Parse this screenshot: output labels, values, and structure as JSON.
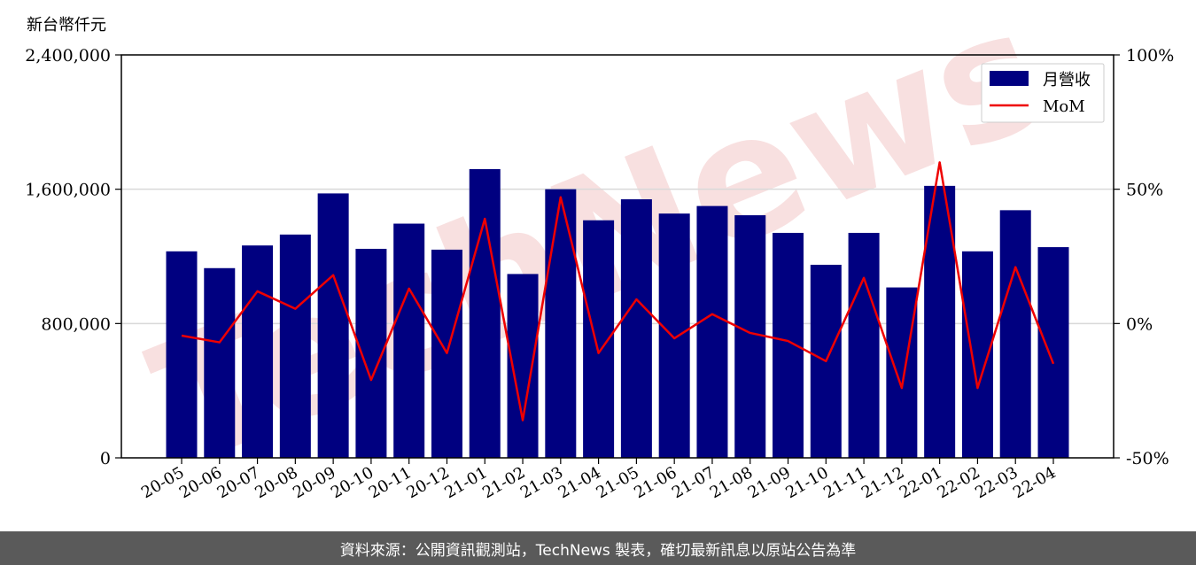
{
  "unit_label": "新台幣仟元",
  "footer_text": "資料來源：公開資訊觀測站，TechNews 製表，確切最新訊息以原站公告為準",
  "watermark_text": "TechNews",
  "colors": {
    "bar": "#000080",
    "line": "#ee0000",
    "grid": "#d9d9d9",
    "watermark": "#f2c7c7"
  },
  "chart_data": {
    "type": "bar",
    "categories": [
      "20-05",
      "20-06",
      "20-07",
      "20-08",
      "20-09",
      "20-10",
      "20-11",
      "20-12",
      "21-01",
      "21-02",
      "21-03",
      "21-04",
      "21-05",
      "21-06",
      "21-07",
      "21-08",
      "21-09",
      "21-10",
      "21-11",
      "21-12",
      "22-01",
      "22-02",
      "22-03",
      "22-04"
    ],
    "series": [
      {
        "name": "月營收",
        "type": "bar",
        "axis": "left",
        "values": [
          1230000,
          1130000,
          1265000,
          1330000,
          1575000,
          1245000,
          1395000,
          1240000,
          1720000,
          1095000,
          1600000,
          1415000,
          1540000,
          1455000,
          1500000,
          1445000,
          1340000,
          1150000,
          1340000,
          1015000,
          1620000,
          1230000,
          1475000,
          1255000
        ]
      },
      {
        "name": "MoM",
        "type": "line",
        "axis": "right",
        "values": [
          -4.5,
          -7,
          12,
          5.5,
          18,
          -21,
          13,
          -11,
          39,
          -36,
          47,
          -11,
          9,
          -5.5,
          3.5,
          -3.5,
          -6.5,
          -14,
          17,
          -24,
          60,
          -24,
          21,
          -15
        ]
      }
    ],
    "y_left": {
      "min": 0,
      "max": 2400000,
      "ticks": [
        "0",
        "800,000",
        "1,600,000",
        "2,400,000"
      ],
      "tick_values": [
        0,
        800000,
        1600000,
        2400000
      ]
    },
    "y_right": {
      "min": -50,
      "max": 100,
      "ticks": [
        "-50%",
        "0%",
        "50%",
        "100%"
      ],
      "tick_values": [
        -50,
        0,
        50,
        100
      ]
    },
    "grid": true,
    "legend_position": "top-right"
  }
}
